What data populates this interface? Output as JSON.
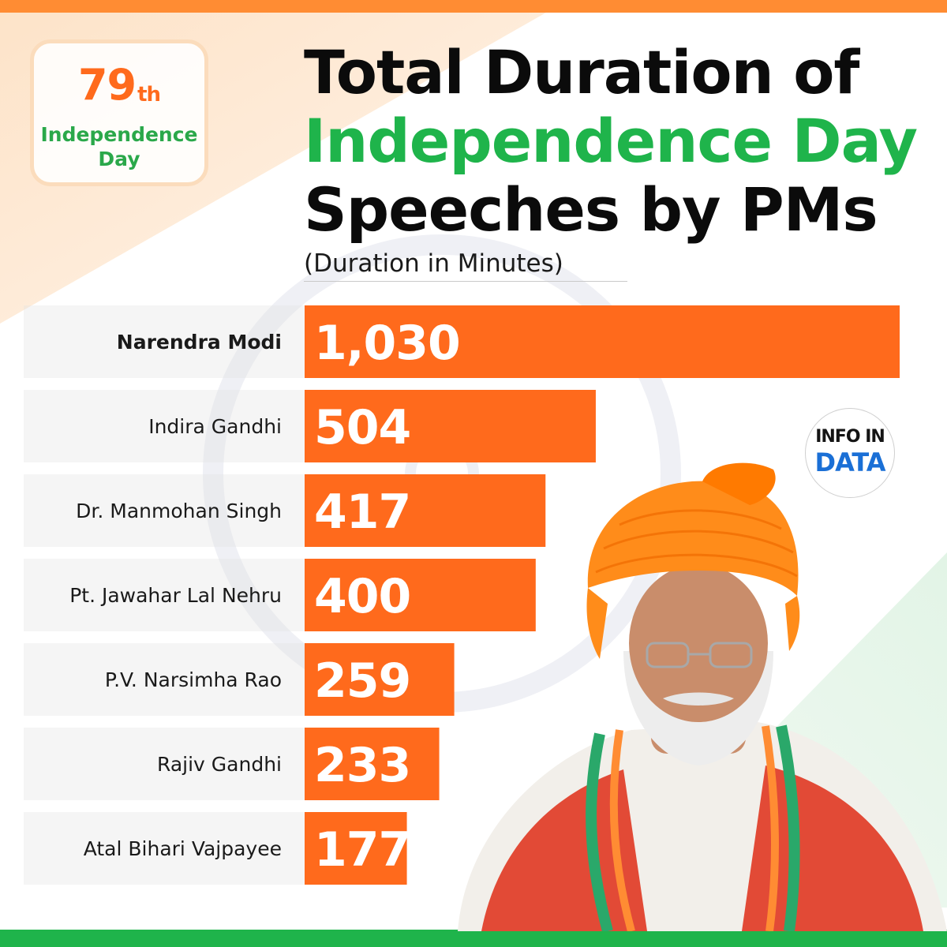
{
  "badge": {
    "number": "79",
    "suffix": "th",
    "label_line1": "Independence",
    "label_line2": "Day"
  },
  "title": {
    "line1": "Total Duration of",
    "line2": "Independence Day",
    "line3": "Speeches by PMs"
  },
  "subtitle": "(Duration in Minutes)",
  "logo": {
    "top": "INFO IN",
    "bottom": "DATA"
  },
  "colors": {
    "bar": "#ff6a1c",
    "saffron": "#ff8c33",
    "green": "#1fb44b",
    "title_green": "#1fb44b",
    "logo_blue": "#1a6fd6"
  },
  "icons": {
    "portrait": "person-portrait-icon",
    "wheel": "ashoka-chakra-icon"
  },
  "chart_data": {
    "type": "bar",
    "orientation": "horizontal",
    "title": "Total Duration of Independence Day Speeches by PMs",
    "subtitle": "(Duration in Minutes)",
    "categories": [
      "Narendra Modi",
      "Indira Gandhi",
      "Dr. Manmohan Singh",
      "Pt. Jawahar Lal Nehru",
      "P.V. Narsimha Rao",
      "Rajiv Gandhi",
      "Atal Bihari Vajpayee"
    ],
    "values": [
      1030,
      504,
      417,
      400,
      259,
      233,
      177
    ],
    "value_labels": [
      "1,030",
      "504",
      "417",
      "400",
      "259",
      "233",
      "177"
    ],
    "unit": "Minutes",
    "xlim": [
      0,
      1030
    ],
    "highlight": "Narendra Modi"
  }
}
